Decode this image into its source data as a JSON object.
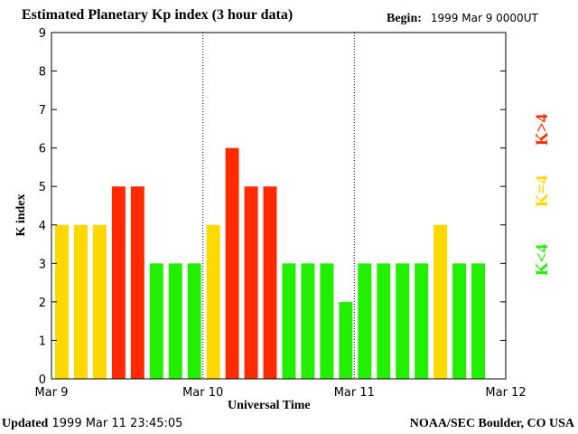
{
  "header": {
    "title": "Estimated Planetary Kp index (3 hour data)",
    "begin_label": "Begin:",
    "begin_value": "1999 Mar 9 0000UT"
  },
  "footer": {
    "updated_label": "Updated",
    "updated_value": "1999 Mar 11 23:45:05",
    "source": "NOAA/SEC Boulder, CO USA"
  },
  "legend": {
    "high": "K>4",
    "mid": "K=4",
    "low": "K<4"
  },
  "colors": {
    "low": "#22f000",
    "mid": "#ffd800",
    "high": "#ff2a00"
  },
  "chart_data": {
    "type": "bar",
    "title": "Estimated Planetary Kp index (3 hour data)",
    "xlabel": "Universal Time",
    "ylabel": "K index",
    "ylim": [
      0,
      9
    ],
    "yticks": [
      0,
      1,
      2,
      3,
      4,
      5,
      6,
      7,
      8,
      9
    ],
    "xticks": [
      "Mar 9",
      "Mar 10",
      "Mar 11",
      "Mar 12"
    ],
    "day_dividers": [
      "Mar 10",
      "Mar 11"
    ],
    "interval_hours": 3,
    "values": [
      4,
      4,
      4,
      5,
      5,
      3,
      3,
      3,
      4,
      6,
      5,
      5,
      3,
      3,
      3,
      2,
      3,
      3,
      3,
      3,
      4,
      3,
      3
    ]
  }
}
